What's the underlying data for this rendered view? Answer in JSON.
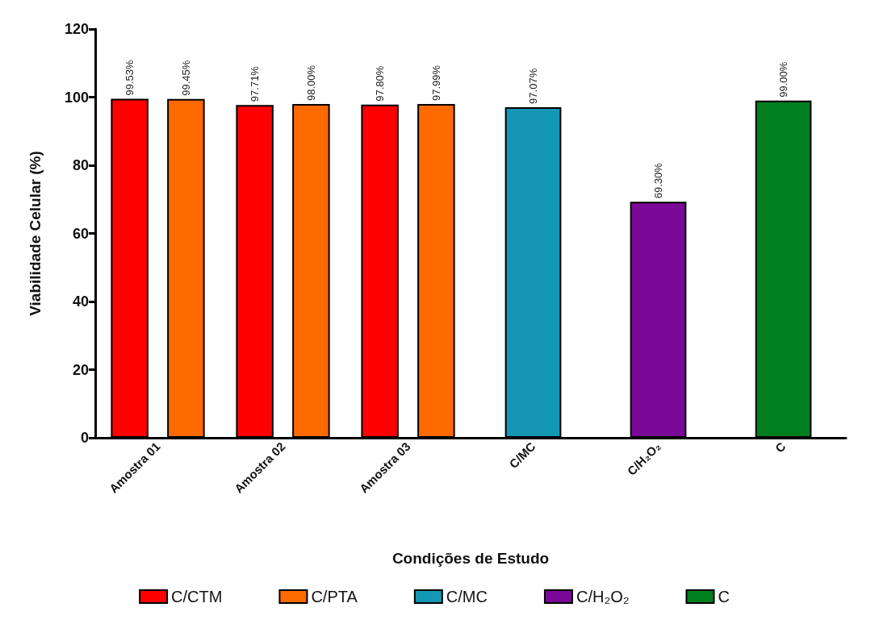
{
  "chart_data": {
    "type": "bar",
    "xlabel": "Condições de Estudo",
    "ylabel": "Viabilidade Celular (%)",
    "categories": [
      "Amostra 01",
      "Amostra 02",
      "Amostra 03",
      "C/MC",
      "C/H₂O₂",
      "C"
    ],
    "series": [
      {
        "name": "C/CTM",
        "color": "#ff0000",
        "values": [
          99.53,
          97.71,
          97.8,
          null,
          null,
          null
        ],
        "value_labels": [
          "99.53%",
          "97.71%",
          "97.80%",
          null,
          null,
          null
        ]
      },
      {
        "name": "C/PTA",
        "color": "#ff6a00",
        "values": [
          99.45,
          98.0,
          97.99,
          null,
          null,
          null
        ],
        "value_labels": [
          "99.45%",
          "98.00%",
          "97.99%",
          null,
          null,
          null
        ]
      },
      {
        "name": "C/MC",
        "color": "#1497b5",
        "values": [
          null,
          null,
          null,
          97.07,
          null,
          null
        ],
        "value_labels": [
          null,
          null,
          null,
          "97.07%",
          null,
          null
        ]
      },
      {
        "name": "C/H₂O₂",
        "color": "#7a0896",
        "values": [
          null,
          null,
          null,
          null,
          69.3,
          null
        ],
        "value_labels": [
          null,
          null,
          null,
          null,
          "69.30%",
          null
        ]
      },
      {
        "name": "C",
        "color": "#007f1f",
        "values": [
          null,
          null,
          null,
          null,
          null,
          99.0
        ],
        "value_labels": [
          null,
          null,
          null,
          null,
          null,
          "99.00%"
        ]
      }
    ],
    "ylim": [
      0,
      120
    ],
    "yticks": [
      0,
      20,
      40,
      60,
      80,
      100,
      120
    ],
    "grid": false,
    "legend": "bottom"
  }
}
